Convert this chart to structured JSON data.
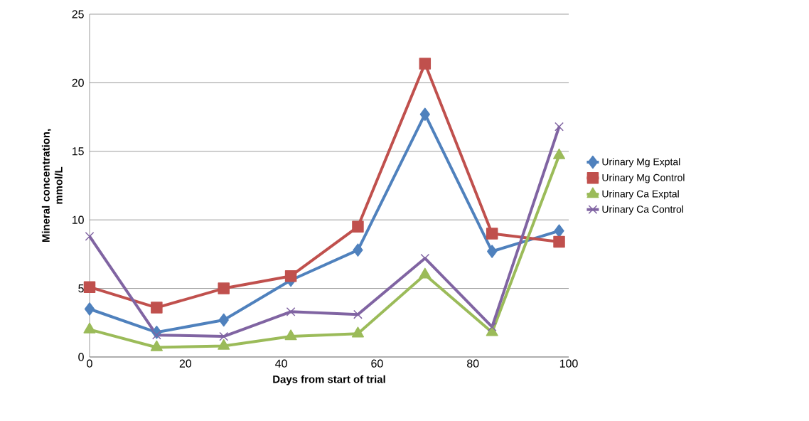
{
  "chart_data": {
    "type": "line",
    "xlabel": "Days from start of trial",
    "ylabel": "Mineral concentration, mmol/L",
    "x": [
      0,
      14,
      28,
      42,
      56,
      70,
      84,
      98
    ],
    "series": [
      {
        "name": "Urinary Mg Exptal",
        "color": "#4f81bd",
        "marker": "diamond",
        "values": [
          3.5,
          1.8,
          2.7,
          5.6,
          7.8,
          17.7,
          7.7,
          9.2
        ]
      },
      {
        "name": "Urinary Mg Control",
        "color": "#c0504d",
        "marker": "square",
        "values": [
          5.1,
          3.6,
          5.0,
          5.9,
          9.5,
          21.4,
          9.0,
          8.4
        ]
      },
      {
        "name": "Urinary Ca Exptal",
        "color": "#9bbb59",
        "marker": "triangle",
        "values": [
          2.0,
          0.7,
          0.8,
          1.5,
          1.7,
          6.0,
          1.8,
          14.7
        ]
      },
      {
        "name": "Urinary Ca Control",
        "color": "#8064a2",
        "marker": "cross",
        "values": [
          8.8,
          1.6,
          1.5,
          3.3,
          3.1,
          7.2,
          2.2,
          16.8
        ]
      }
    ],
    "xlim": [
      0,
      100
    ],
    "ylim": [
      0,
      25
    ],
    "xticks": [
      0,
      20,
      40,
      60,
      80,
      100
    ],
    "yticks": [
      0,
      5,
      10,
      15,
      20,
      25
    ],
    "grid": "y",
    "legend": "right",
    "line_style": "solid"
  }
}
